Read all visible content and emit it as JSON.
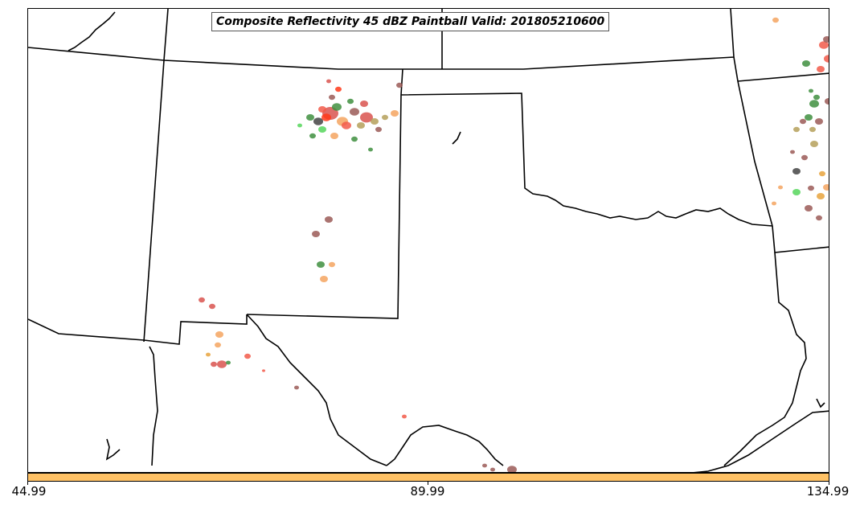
{
  "title": "Composite Reflectivity 45 dBZ Paintball Valid: 201805210600",
  "colorbar": {
    "color": "#ffc266",
    "tick_labels": [
      "44.99",
      "89.99",
      "134.99"
    ]
  },
  "storm_colors": [
    "#d9534f",
    "#f4a460",
    "#9b5a57",
    "#3f8f3f",
    "#f25a4a",
    "#56d65c",
    "#b5a05a",
    "#e8a33d",
    "#444444",
    "#ff3a1a"
  ]
}
